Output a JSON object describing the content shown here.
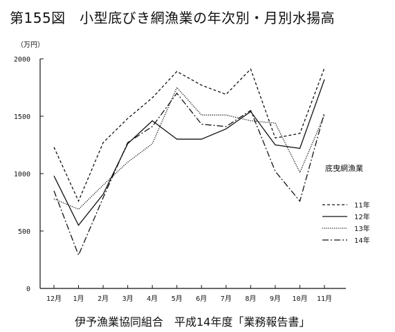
{
  "page": {
    "title": "第155図　小型底びき網漁業の年次別・月別水揚高",
    "footer": "伊予漁業協同組合　平成14年度「業務報告書」"
  },
  "chart_data": {
    "type": "line",
    "title": "第155図　小型底びき網漁業の年次別・月別水揚高",
    "unit_label": "（万円）",
    "legend_title": "底曳網漁業",
    "legend_position": "right",
    "categories": [
      "12月",
      "1月",
      "2月",
      "3月",
      "4月",
      "5月",
      "6月",
      "7月",
      "8月",
      "9月",
      "10月",
      "11月"
    ],
    "y_ticks": [
      0,
      500,
      1000,
      1500,
      2000
    ],
    "ylim": [
      0,
      2000
    ],
    "grid": false,
    "series": [
      {
        "name": "11年",
        "style": "dashed",
        "values": [
          1230,
          760,
          1270,
          1480,
          1660,
          1890,
          1770,
          1690,
          1910,
          1310,
          1350,
          1920
        ]
      },
      {
        "name": "12年",
        "style": "solid",
        "values": [
          980,
          550,
          820,
          1260,
          1460,
          1300,
          1300,
          1390,
          1540,
          1250,
          1220,
          1820
        ]
      },
      {
        "name": "13年",
        "style": "dotted",
        "values": [
          780,
          690,
          900,
          1100,
          1260,
          1750,
          1510,
          1510,
          1460,
          1440,
          1010,
          1510
        ]
      },
      {
        "name": "14年",
        "style": "dashdot",
        "values": [
          850,
          290,
          790,
          1270,
          1410,
          1700,
          1430,
          1410,
          1550,
          1020,
          760,
          1530
        ]
      }
    ]
  }
}
